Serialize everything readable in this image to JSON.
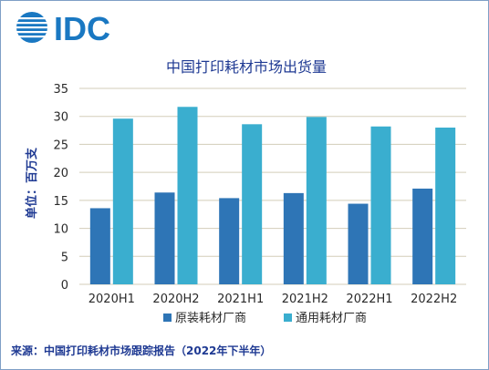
{
  "logo_text": "IDC",
  "source_text": "来源：中国打印耗材市场跟踪报告（2022年下半年）",
  "colors": {
    "series1": "#2e75b6",
    "series2": "#3aaecf",
    "grid": "#d3cdb9",
    "text": "#2a2a2a",
    "title": "#1f3a93",
    "logo": "#1a78c2"
  },
  "chart_data": {
    "type": "bar",
    "title": "中国打印耗材市场出货量",
    "xlabel": "",
    "ylabel": "单位：百万支",
    "ylim": [
      0,
      35
    ],
    "yticks": [
      0,
      5,
      10,
      15,
      20,
      25,
      30,
      35
    ],
    "grid": true,
    "legend_position": "bottom",
    "categories": [
      "2020H1",
      "2020H2",
      "2021H1",
      "2021H2",
      "2022H1",
      "2022H2"
    ],
    "series": [
      {
        "name": "原装耗材厂商",
        "values": [
          13.6,
          16.4,
          15.4,
          16.3,
          14.4,
          17.1
        ]
      },
      {
        "name": "通用耗材厂商",
        "values": [
          29.6,
          31.7,
          28.6,
          29.9,
          28.2,
          28.0
        ]
      }
    ]
  }
}
